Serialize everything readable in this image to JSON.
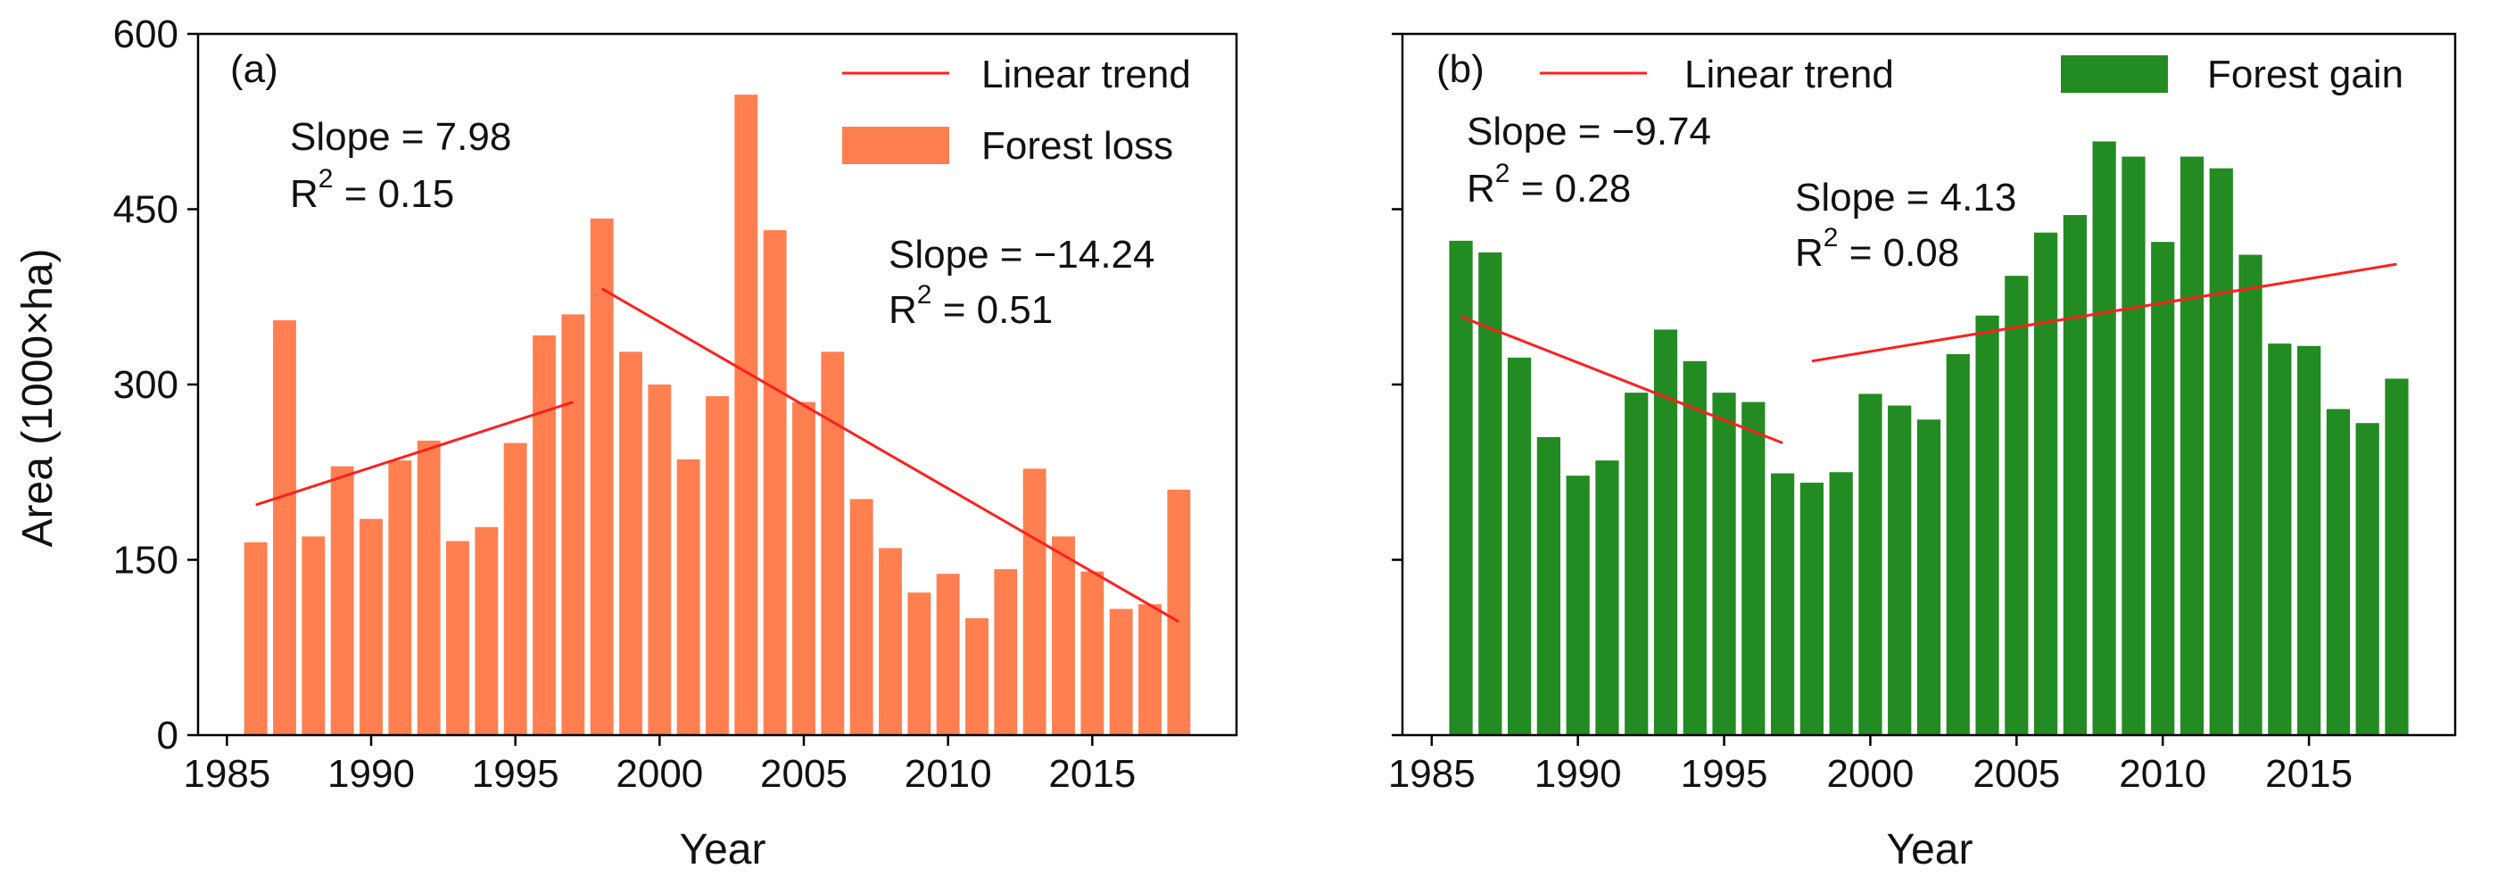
{
  "chart_data": [
    {
      "type": "bar",
      "panel_label": "(a)",
      "xlabel": "Year",
      "ylabel": "Area (1000×ha)",
      "xlim": [
        1984,
        2020
      ],
      "ylim": [
        0,
        600
      ],
      "x_ticks": [
        1985,
        1990,
        1995,
        2000,
        2005,
        2010,
        2015
      ],
      "y_ticks": [
        0,
        150,
        300,
        450,
        600
      ],
      "x": [
        1986,
        1987,
        1988,
        1989,
        1990,
        1991,
        1992,
        1993,
        1994,
        1995,
        1996,
        1997,
        1998,
        1999,
        2000,
        2001,
        2002,
        2003,
        2004,
        2005,
        2006,
        2007,
        2008,
        2009,
        2010,
        2011,
        2012,
        2013,
        2014,
        2015,
        2016,
        2017,
        2018
      ],
      "series": [
        {
          "name": "Forest loss",
          "color": "#ff7f50",
          "values": [
            165,
            355,
            170,
            230,
            185,
            235,
            252,
            166,
            178,
            250,
            342,
            360,
            442,
            328,
            300,
            236,
            290,
            548,
            432,
            285,
            328,
            202,
            160,
            122,
            138,
            100,
            142,
            228,
            170,
            140,
            108,
            112,
            210
          ]
        }
      ],
      "trend_lines": [
        {
          "name": "Linear trend",
          "color": "#ff1f1f",
          "x": [
            1986,
            1997
          ],
          "y": [
            197,
            285
          ]
        },
        {
          "name": "Linear trend",
          "color": "#ff1f1f",
          "x": [
            1998,
            2018
          ],
          "y": [
            382,
            97
          ]
        }
      ],
      "legend": [
        {
          "label": "Linear trend",
          "kind": "line",
          "color": "#ff1f1f"
        },
        {
          "label": "Forest loss",
          "kind": "patch",
          "color": "#ff7f50"
        }
      ],
      "annotations": [
        {
          "slope": "Slope = 7.98",
          "r2_prefix": "R",
          "r2_sup": "2",
          "r2_value": " = 0.15"
        },
        {
          "slope": "Slope = −14.24",
          "r2_prefix": "R",
          "r2_sup": "2",
          "r2_value": " = 0.51"
        }
      ]
    },
    {
      "type": "bar",
      "panel_label": "(b)",
      "xlabel": "Year",
      "ylabel": "",
      "xlim": [
        1984,
        2020
      ],
      "ylim": [
        0,
        600
      ],
      "x_ticks": [
        1985,
        1990,
        1995,
        2000,
        2005,
        2010,
        2015
      ],
      "y_ticks": [
        0,
        150,
        300,
        450,
        600
      ],
      "x": [
        1986,
        1987,
        1988,
        1989,
        1990,
        1991,
        1992,
        1993,
        1994,
        1995,
        1996,
        1997,
        1998,
        1999,
        2000,
        2001,
        2002,
        2003,
        2004,
        2005,
        2006,
        2007,
        2008,
        2009,
        2010,
        2011,
        2012,
        2013,
        2014,
        2015,
        2016,
        2017,
        2018
      ],
      "series": [
        {
          "name": "Forest gain",
          "color": "#228b22",
          "values": [
            423,
            413,
            323,
            255,
            222,
            235,
            293,
            347,
            320,
            293,
            285,
            224,
            216,
            225,
            292,
            282,
            270,
            326,
            359,
            393,
            430,
            445,
            508,
            495,
            422,
            495,
            485,
            411,
            335,
            333,
            279,
            267,
            305
          ]
        }
      ],
      "trend_lines": [
        {
          "name": "Linear trend",
          "color": "#ff1f1f",
          "x": [
            1986,
            1997
          ],
          "y": [
            358,
            250
          ]
        },
        {
          "name": "Linear trend",
          "color": "#ff1f1f",
          "x": [
            1998,
            2018
          ],
          "y": [
            320,
            403
          ]
        }
      ],
      "legend": [
        {
          "label": "Linear trend",
          "kind": "line",
          "color": "#ff1f1f"
        },
        {
          "label": "Forest gain",
          "kind": "patch",
          "color": "#228b22"
        }
      ],
      "annotations": [
        {
          "slope": "Slope = −9.74",
          "r2_prefix": "R",
          "r2_sup": "2",
          "r2_value": " = 0.28"
        },
        {
          "slope": "Slope = 4.13",
          "r2_prefix": "R",
          "r2_sup": "2",
          "r2_value": " = 0.08"
        }
      ]
    }
  ]
}
